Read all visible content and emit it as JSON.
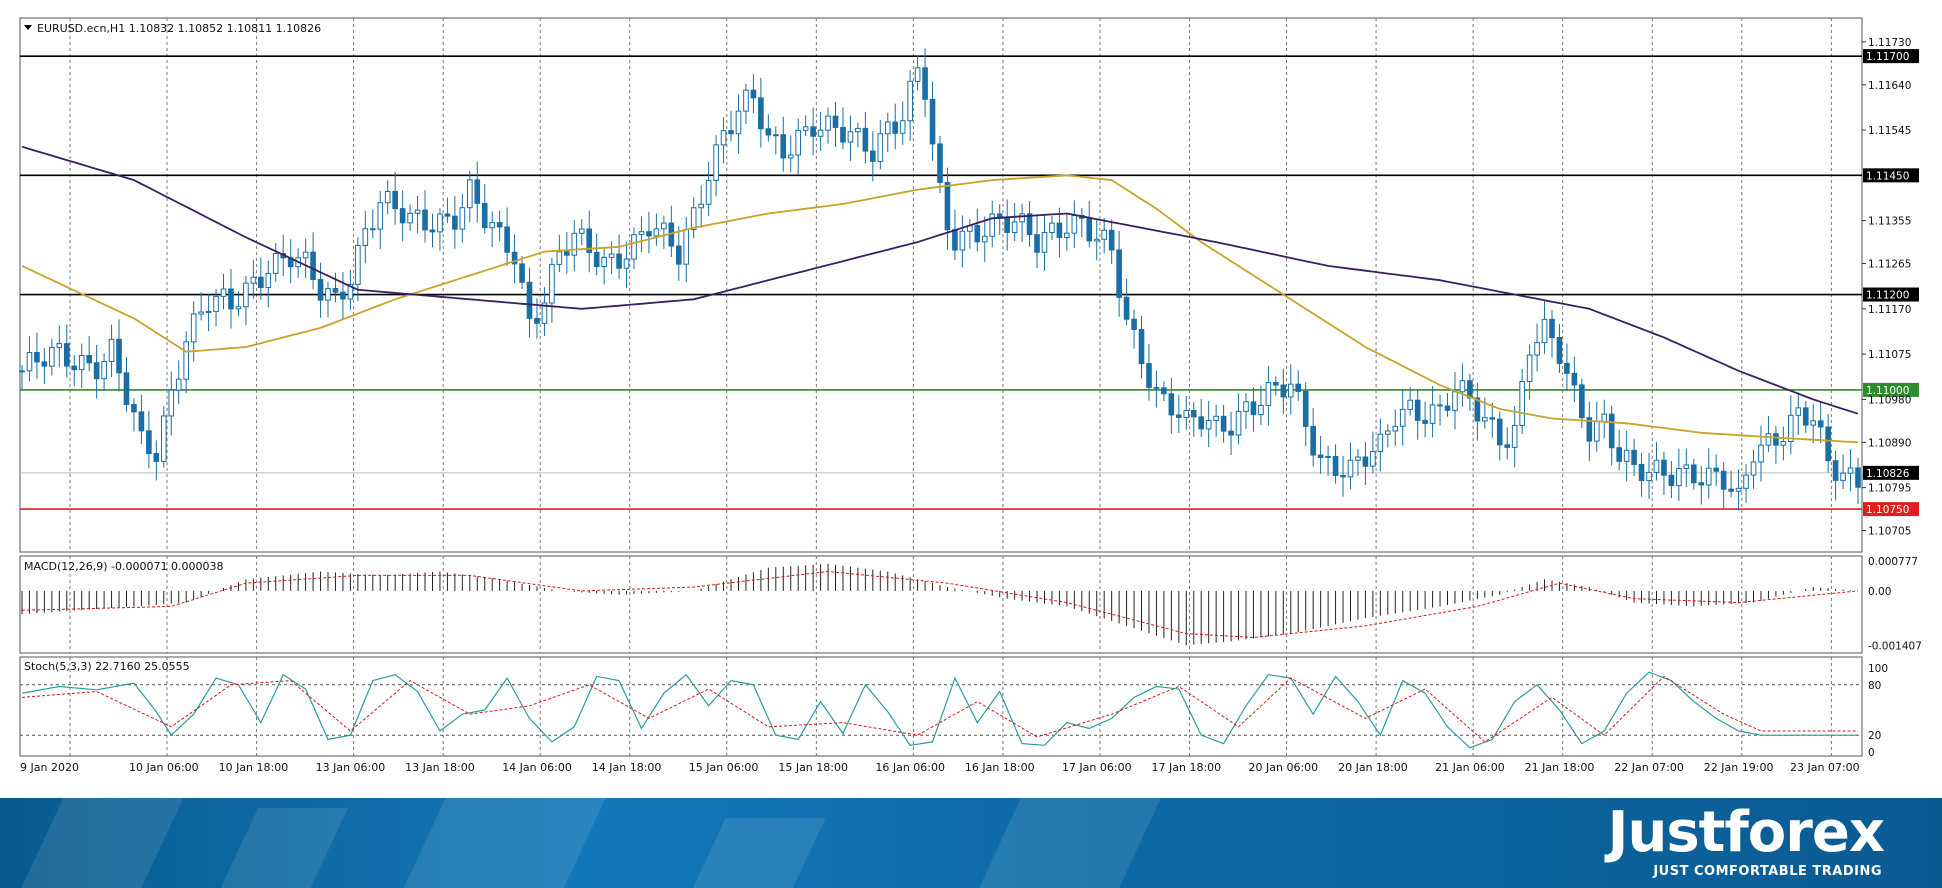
{
  "header": {
    "symbol_info": "EURUSD.ecn,H1  1.10832 1.10852 1.10811 1.10826",
    "macd_info": "MACD(12,26,9) -0.000071 0.000038",
    "stoch_info": "Stoch(5,3,3) 22.7160 25.0555"
  },
  "brand": {
    "logo": "Justforex",
    "tagline": "JUST COMFORTABLE TRADING"
  },
  "colors": {
    "bull_candle": "#ffffff",
    "bear_candle": "#1a6ea3",
    "wick": "#1a6ea3",
    "ma_fast": "#c9a227",
    "ma_slow": "#3b1f63",
    "level_resistance": "#000000",
    "level_green": "#2e8b2e",
    "level_red": "#e01e1e",
    "macd_signal": "#d11a1a",
    "stoch_main": "#2a9d9d",
    "stoch_signal": "#d11a1a"
  },
  "chart_data": [
    {
      "type": "candlestick",
      "symbol": "EURUSD.ecn",
      "timeframe": "H1",
      "ylim": [
        1.1066,
        1.1178
      ],
      "y_ticks": [
        "1.11730",
        "1.11640",
        "1.11545",
        "1.11355",
        "1.11265",
        "1.11170",
        "1.11075",
        "1.10980",
        "1.10890",
        "1.10795",
        "1.10705"
      ],
      "x_ticks": [
        "9 Jan 2020",
        "10 Jan 06:00",
        "10 Jan 18:00",
        "13 Jan 06:00",
        "13 Jan 18:00",
        "14 Jan 06:00",
        "14 Jan 18:00",
        "15 Jan 06:00",
        "15 Jan 18:00",
        "16 Jan 06:00",
        "16 Jan 18:00",
        "17 Jan 06:00",
        "17 Jan 18:00",
        "20 Jan 06:00",
        "20 Jan 18:00",
        "21 Jan 06:00",
        "21 Jan 18:00",
        "22 Jan 07:00",
        "22 Jan 19:00",
        "23 Jan 07:00"
      ],
      "levels": [
        {
          "label": "1.11700",
          "value": 1.117,
          "color": "#000000"
        },
        {
          "label": "1.11450",
          "value": 1.1145,
          "color": "#000000"
        },
        {
          "label": "1.11200",
          "value": 1.112,
          "color": "#000000"
        },
        {
          "label": "1.11000",
          "value": 1.11,
          "color": "#2e8b2e"
        },
        {
          "label": "1.10750",
          "value": 1.1075,
          "color": "#e01e1e"
        }
      ],
      "current_price": {
        "label": "1.10826",
        "value": 1.10826
      },
      "close_path": [
        [
          0,
          1.1104
        ],
        [
          5,
          1.1107
        ],
        [
          10,
          1.1106
        ],
        [
          12,
          1.1108
        ],
        [
          14,
          1.1098
        ],
        [
          16,
          1.1088
        ],
        [
          18,
          1.1087
        ],
        [
          20,
          1.11
        ],
        [
          22,
          1.1112
        ],
        [
          25,
          1.1118
        ],
        [
          28,
          1.1117
        ],
        [
          30,
          1.1121
        ],
        [
          33,
          1.1127
        ],
        [
          36,
          1.1128
        ],
        [
          38,
          1.1125
        ],
        [
          40,
          1.112
        ],
        [
          42,
          1.1119
        ],
        [
          44,
          1.1125
        ],
        [
          46,
          1.1134
        ],
        [
          48,
          1.1139
        ],
        [
          50,
          1.1137
        ],
        [
          52,
          1.1135
        ],
        [
          55,
          1.1136
        ],
        [
          58,
          1.1137
        ],
        [
          60,
          1.1141
        ],
        [
          62,
          1.1135
        ],
        [
          64,
          1.1131
        ],
        [
          66,
          1.1129
        ],
        [
          68,
          1.1115
        ],
        [
          70,
          1.112
        ],
        [
          72,
          1.1128
        ],
        [
          74,
          1.1131
        ],
        [
          76,
          1.1129
        ],
        [
          78,
          1.1127
        ],
        [
          80,
          1.1129
        ],
        [
          82,
          1.1131
        ],
        [
          84,
          1.1134
        ],
        [
          86,
          1.1131
        ],
        [
          88,
          1.1128
        ],
        [
          90,
          1.1137
        ],
        [
          92,
          1.1147
        ],
        [
          94,
          1.1154
        ],
        [
          96,
          1.1158
        ],
        [
          98,
          1.116
        ],
        [
          100,
          1.1152
        ],
        [
          102,
          1.1151
        ],
        [
          104,
          1.1154
        ],
        [
          106,
          1.1156
        ],
        [
          108,
          1.1154
        ],
        [
          110,
          1.1153
        ],
        [
          112,
          1.1152
        ],
        [
          114,
          1.1151
        ],
        [
          116,
          1.1156
        ],
        [
          118,
          1.1158
        ],
        [
          120,
          1.1166
        ],
        [
          121,
          1.1162
        ],
        [
          122,
          1.115
        ],
        [
          123,
          1.114
        ],
        [
          124,
          1.1134
        ],
        [
          125,
          1.1132
        ],
        [
          127,
          1.1134
        ],
        [
          130,
          1.1135
        ],
        [
          133,
          1.1134
        ],
        [
          136,
          1.1131
        ],
        [
          138,
          1.1134
        ],
        [
          140,
          1.1136
        ],
        [
          142,
          1.1135
        ],
        [
          144,
          1.1131
        ],
        [
          146,
          1.1128
        ],
        [
          148,
          1.1114
        ],
        [
          150,
          1.1108
        ],
        [
          152,
          1.11
        ],
        [
          154,
          1.1097
        ],
        [
          156,
          1.1092
        ],
        [
          158,
          1.1093
        ],
        [
          160,
          1.1092
        ],
        [
          162,
          1.1094
        ],
        [
          164,
          1.1097
        ],
        [
          166,
          1.1098
        ],
        [
          168,
          1.1099
        ],
        [
          170,
          1.11
        ],
        [
          172,
          1.1093
        ],
        [
          174,
          1.1086
        ],
        [
          176,
          1.1085
        ],
        [
          178,
          1.1083
        ],
        [
          180,
          1.1085
        ],
        [
          182,
          1.1087
        ],
        [
          184,
          1.1095
        ],
        [
          186,
          1.1097
        ],
        [
          188,
          1.1096
        ],
        [
          190,
          1.1095
        ],
        [
          192,
          1.1099
        ],
        [
          194,
          1.1097
        ],
        [
          196,
          1.1094
        ],
        [
          198,
          1.1091
        ],
        [
          200,
          1.1092
        ],
        [
          202,
          1.1109
        ],
        [
          204,
          1.1111
        ],
        [
          206,
          1.1107
        ],
        [
          208,
          1.1099
        ],
        [
          210,
          1.1093
        ],
        [
          212,
          1.1094
        ],
        [
          214,
          1.1086
        ],
        [
          216,
          1.1082
        ],
        [
          218,
          1.1082
        ],
        [
          220,
          1.1083
        ],
        [
          222,
          1.1084
        ],
        [
          224,
          1.1083
        ],
        [
          226,
          1.1081
        ],
        [
          228,
          1.108
        ],
        [
          230,
          1.1076
        ],
        [
          232,
          1.1088
        ],
        [
          234,
          1.109
        ],
        [
          236,
          1.1092
        ],
        [
          238,
          1.1094
        ],
        [
          240,
          1.1093
        ],
        [
          242,
          1.1084
        ],
        [
          244,
          1.1083
        ],
        [
          246,
          1.1082
        ]
      ],
      "ma_fast_path": [
        [
          0,
          1.1126
        ],
        [
          15,
          1.1115
        ],
        [
          22,
          1.1108
        ],
        [
          30,
          1.1109
        ],
        [
          40,
          1.1113
        ],
        [
          50,
          1.1119
        ],
        [
          60,
          1.1124
        ],
        [
          70,
          1.1129
        ],
        [
          80,
          1.113
        ],
        [
          90,
          1.1134
        ],
        [
          100,
          1.1137
        ],
        [
          110,
          1.1139
        ],
        [
          120,
          1.1142
        ],
        [
          130,
          1.1144
        ],
        [
          140,
          1.1145
        ],
        [
          146,
          1.1144
        ],
        [
          152,
          1.1138
        ],
        [
          158,
          1.1131
        ],
        [
          165,
          1.1124
        ],
        [
          172,
          1.1117
        ],
        [
          180,
          1.1109
        ],
        [
          190,
          1.1101
        ],
        [
          198,
          1.1096
        ],
        [
          205,
          1.1094
        ],
        [
          215,
          1.1093
        ],
        [
          225,
          1.1091
        ],
        [
          235,
          1.109
        ],
        [
          246,
          1.1089
        ]
      ],
      "ma_slow_path": [
        [
          0,
          1.1151
        ],
        [
          15,
          1.1144
        ],
        [
          30,
          1.1132
        ],
        [
          45,
          1.1121
        ],
        [
          60,
          1.1119
        ],
        [
          75,
          1.1117
        ],
        [
          90,
          1.1119
        ],
        [
          105,
          1.1125
        ],
        [
          120,
          1.1131
        ],
        [
          130,
          1.1136
        ],
        [
          140,
          1.1137
        ],
        [
          150,
          1.1134
        ],
        [
          160,
          1.1131
        ],
        [
          175,
          1.1126
        ],
        [
          190,
          1.1123
        ],
        [
          200,
          1.112
        ],
        [
          210,
          1.1117
        ],
        [
          220,
          1.1111
        ],
        [
          230,
          1.1104
        ],
        [
          240,
          1.1098
        ],
        [
          246,
          1.1095
        ]
      ]
    },
    {
      "type": "bar",
      "name": "MACD(12,26,9)",
      "ylim": [
        -0.0016,
        0.0009
      ],
      "y_ticks": [
        "0.000777",
        "0.00",
        "-0.001407"
      ],
      "hist_path": [
        [
          0,
          -0.0006
        ],
        [
          15,
          -0.0004
        ],
        [
          22,
          -0.0003
        ],
        [
          30,
          0.0003
        ],
        [
          40,
          0.0005
        ],
        [
          48,
          0.0004
        ],
        [
          56,
          0.0005
        ],
        [
          64,
          0.0003
        ],
        [
          72,
          0.0
        ],
        [
          80,
          -0.0001
        ],
        [
          90,
          0.0
        ],
        [
          100,
          0.0006
        ],
        [
          108,
          0.0007
        ],
        [
          116,
          0.0005
        ],
        [
          124,
          0.0001
        ],
        [
          132,
          -0.0002
        ],
        [
          140,
          -0.0004
        ],
        [
          148,
          -0.0009
        ],
        [
          156,
          -0.0014
        ],
        [
          162,
          -0.0013
        ],
        [
          170,
          -0.0011
        ],
        [
          180,
          -0.0007
        ],
        [
          190,
          -0.0004
        ],
        [
          198,
          -0.0001
        ],
        [
          204,
          0.0003
        ],
        [
          210,
          0.0001
        ],
        [
          216,
          -0.0003
        ],
        [
          224,
          -0.0004
        ],
        [
          232,
          -0.0003
        ],
        [
          240,
          0.0001
        ],
        [
          246,
          0.0
        ]
      ],
      "signal_path": [
        [
          0,
          -0.0005
        ],
        [
          20,
          -0.0004
        ],
        [
          30,
          0.0002
        ],
        [
          45,
          0.0004
        ],
        [
          60,
          0.0004
        ],
        [
          75,
          0.0
        ],
        [
          90,
          0.0001
        ],
        [
          108,
          0.0005
        ],
        [
          124,
          0.0002
        ],
        [
          140,
          -0.0003
        ],
        [
          156,
          -0.0011
        ],
        [
          165,
          -0.0012
        ],
        [
          180,
          -0.0009
        ],
        [
          195,
          -0.0004
        ],
        [
          206,
          0.0002
        ],
        [
          216,
          -0.0002
        ],
        [
          230,
          -0.0003
        ],
        [
          246,
          0.0
        ]
      ]
    },
    {
      "type": "line",
      "name": "Stoch(5,3,3)",
      "ylim": [
        0,
        100
      ],
      "y_ticks": [
        "100",
        "80",
        "20",
        "0"
      ],
      "main_path": [
        [
          0,
          70
        ],
        [
          5,
          78
        ],
        [
          10,
          74
        ],
        [
          15,
          82
        ],
        [
          18,
          48
        ],
        [
          20,
          20
        ],
        [
          23,
          45
        ],
        [
          26,
          88
        ],
        [
          29,
          80
        ],
        [
          32,
          35
        ],
        [
          35,
          92
        ],
        [
          38,
          75
        ],
        [
          41,
          15
        ],
        [
          44,
          20
        ],
        [
          47,
          85
        ],
        [
          50,
          92
        ],
        [
          53,
          72
        ],
        [
          56,
          25
        ],
        [
          59,
          45
        ],
        [
          62,
          50
        ],
        [
          65,
          88
        ],
        [
          68,
          40
        ],
        [
          71,
          12
        ],
        [
          74,
          30
        ],
        [
          77,
          90
        ],
        [
          80,
          85
        ],
        [
          83,
          28
        ],
        [
          86,
          70
        ],
        [
          89,
          92
        ],
        [
          92,
          55
        ],
        [
          95,
          85
        ],
        [
          98,
          80
        ],
        [
          101,
          20
        ],
        [
          104,
          15
        ],
        [
          107,
          60
        ],
        [
          110,
          22
        ],
        [
          113,
          80
        ],
        [
          116,
          48
        ],
        [
          119,
          8
        ],
        [
          122,
          12
        ],
        [
          125,
          88
        ],
        [
          128,
          35
        ],
        [
          131,
          72
        ],
        [
          134,
          10
        ],
        [
          137,
          8
        ],
        [
          140,
          35
        ],
        [
          143,
          28
        ],
        [
          146,
          40
        ],
        [
          149,
          65
        ],
        [
          152,
          78
        ],
        [
          155,
          75
        ],
        [
          158,
          20
        ],
        [
          161,
          10
        ],
        [
          164,
          55
        ],
        [
          167,
          92
        ],
        [
          170,
          88
        ],
        [
          173,
          45
        ],
        [
          176,
          90
        ],
        [
          179,
          60
        ],
        [
          182,
          20
        ],
        [
          185,
          85
        ],
        [
          188,
          70
        ],
        [
          191,
          30
        ],
        [
          194,
          5
        ],
        [
          197,
          15
        ],
        [
          200,
          60
        ],
        [
          203,
          80
        ],
        [
          206,
          50
        ],
        [
          209,
          10
        ],
        [
          212,
          25
        ],
        [
          215,
          70
        ],
        [
          218,
          95
        ],
        [
          221,
          85
        ],
        [
          224,
          60
        ],
        [
          227,
          40
        ],
        [
          230,
          25
        ],
        [
          233,
          20
        ]
      ],
      "signal_path": [
        [
          0,
          65
        ],
        [
          10,
          72
        ],
        [
          20,
          30
        ],
        [
          28,
          80
        ],
        [
          36,
          85
        ],
        [
          44,
          25
        ],
        [
          52,
          85
        ],
        [
          60,
          45
        ],
        [
          68,
          55
        ],
        [
          76,
          80
        ],
        [
          84,
          40
        ],
        [
          92,
          75
        ],
        [
          100,
          30
        ],
        [
          110,
          35
        ],
        [
          120,
          20
        ],
        [
          128,
          60
        ],
        [
          136,
          18
        ],
        [
          146,
          45
        ],
        [
          155,
          78
        ],
        [
          163,
          30
        ],
        [
          170,
          88
        ],
        [
          180,
          40
        ],
        [
          188,
          75
        ],
        [
          196,
          12
        ],
        [
          205,
          65
        ],
        [
          212,
          20
        ],
        [
          220,
          90
        ],
        [
          228,
          45
        ],
        [
          233,
          25
        ]
      ]
    }
  ]
}
